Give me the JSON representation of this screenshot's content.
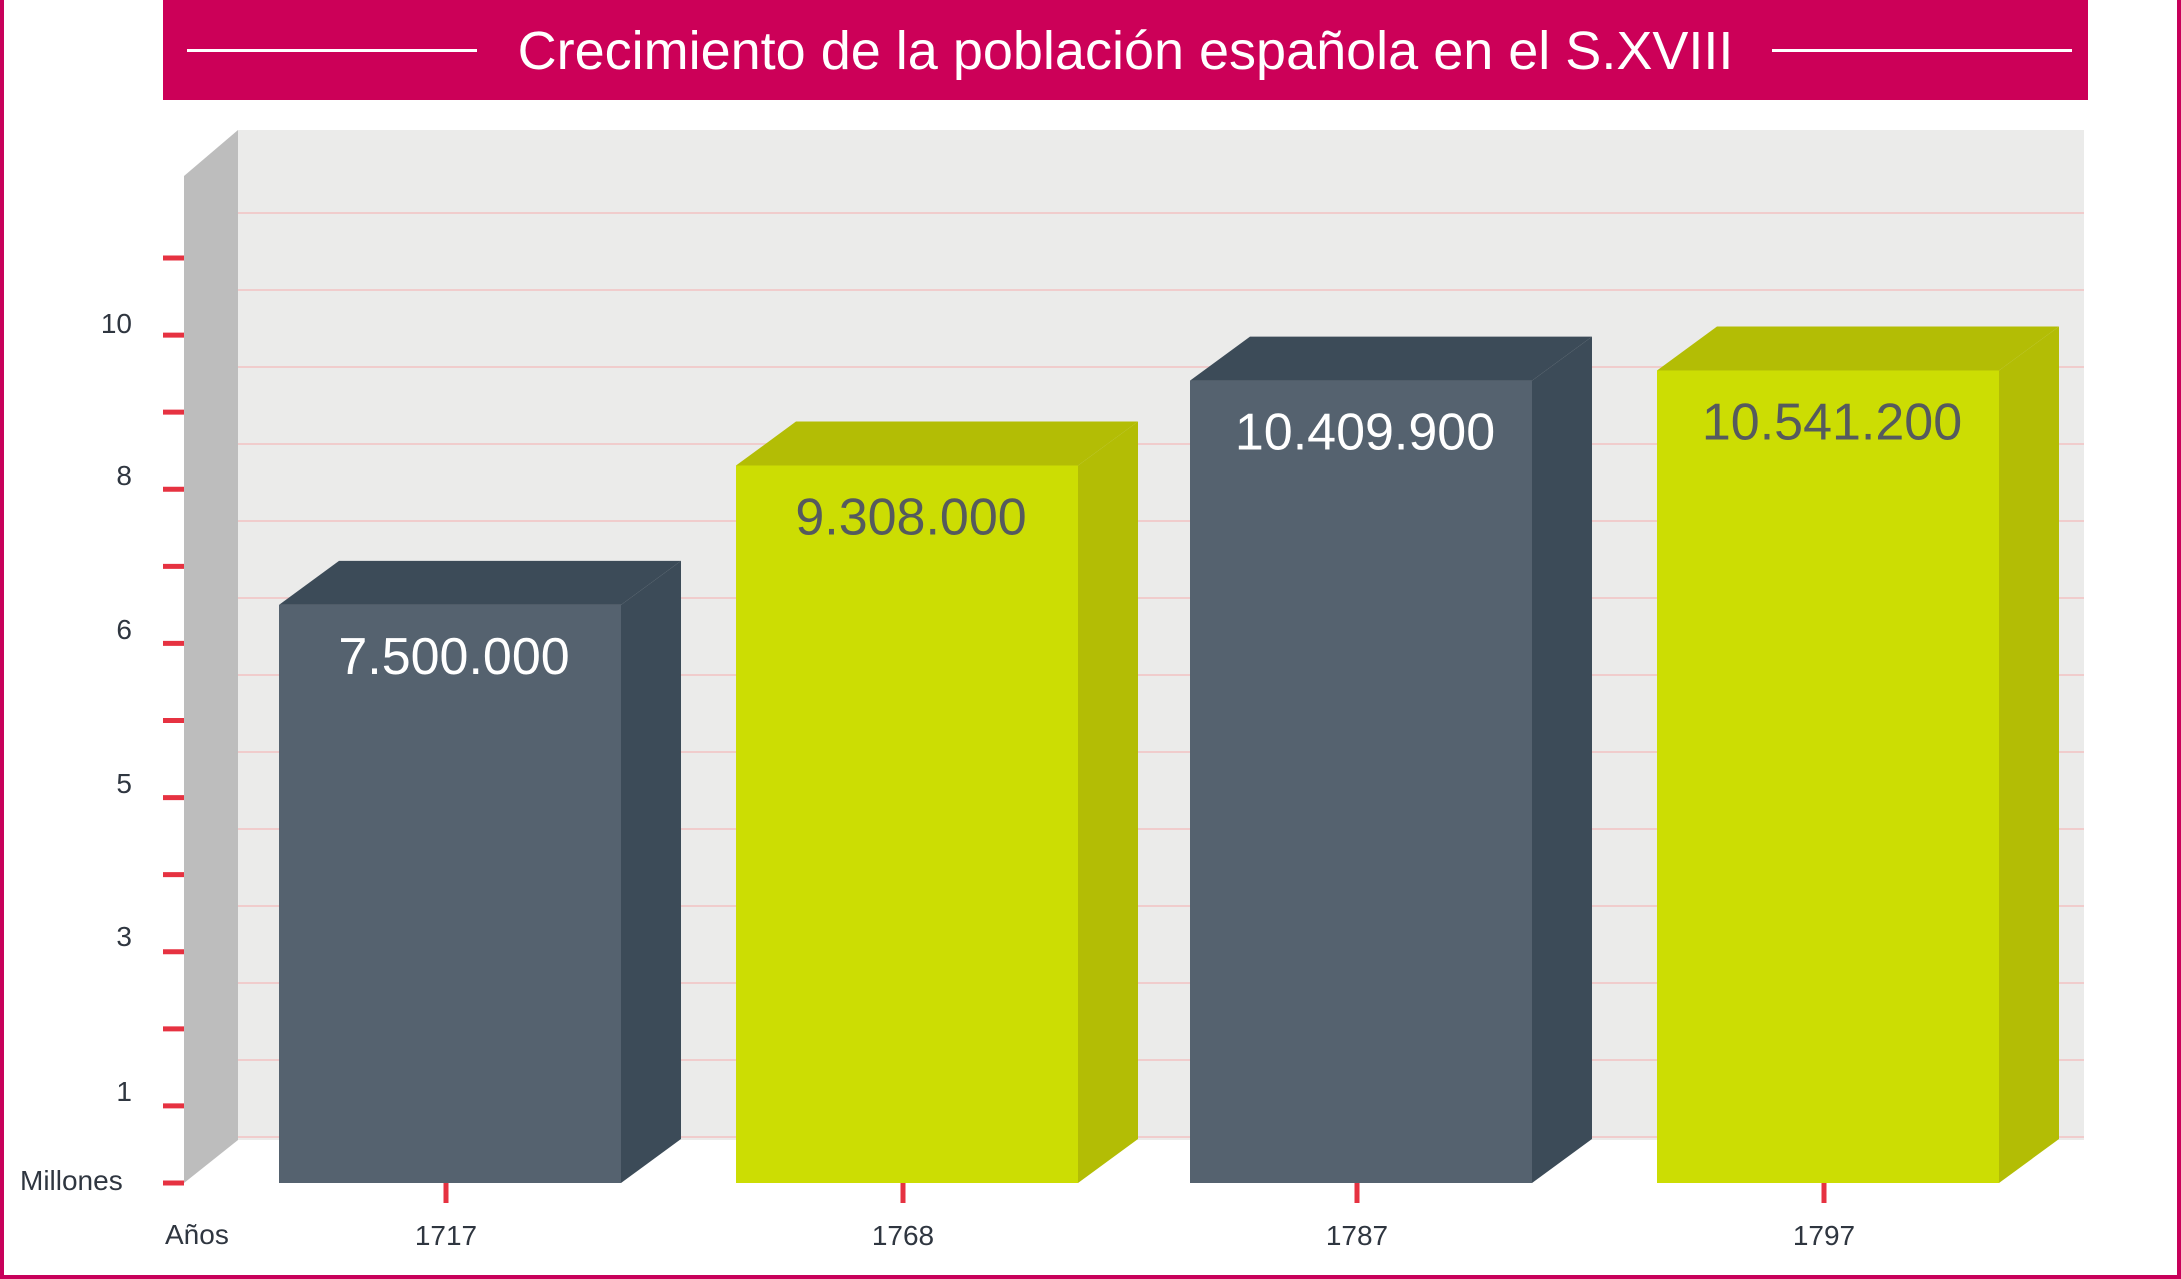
{
  "colors": {
    "frame": "#c8005a",
    "banner": "#cc0058",
    "dark_front": "#55626f",
    "dark_side": "#3c4b58",
    "lime_front": "#ccdd03",
    "lime_side": "#b3bd05",
    "wall": "#ebebea",
    "left_wall": "#bdbdbd",
    "grid": "#f0cccc",
    "tick": "#e63241",
    "dark_label": "#ffffff",
    "lime_label": "#555a5e"
  },
  "chart_data": {
    "type": "bar",
    "title": "Crecimiento de la población española en el S.XVIII",
    "ylabel": "Millones",
    "xlabel": "Años",
    "categories": [
      "1717",
      "1768",
      "1787",
      "1797"
    ],
    "values": [
      7500000,
      9308000,
      10409900,
      10541200
    ],
    "value_labels": [
      "7.500.000",
      "9.308.000",
      "10.409.900",
      "10.541.200"
    ],
    "bar_styles": [
      "dark",
      "lime",
      "dark",
      "lime"
    ],
    "y_tick_labels": [
      "10",
      "8",
      "6",
      "5",
      "3",
      "1"
    ],
    "ylim": [
      0,
      12000000
    ],
    "grid": true
  }
}
